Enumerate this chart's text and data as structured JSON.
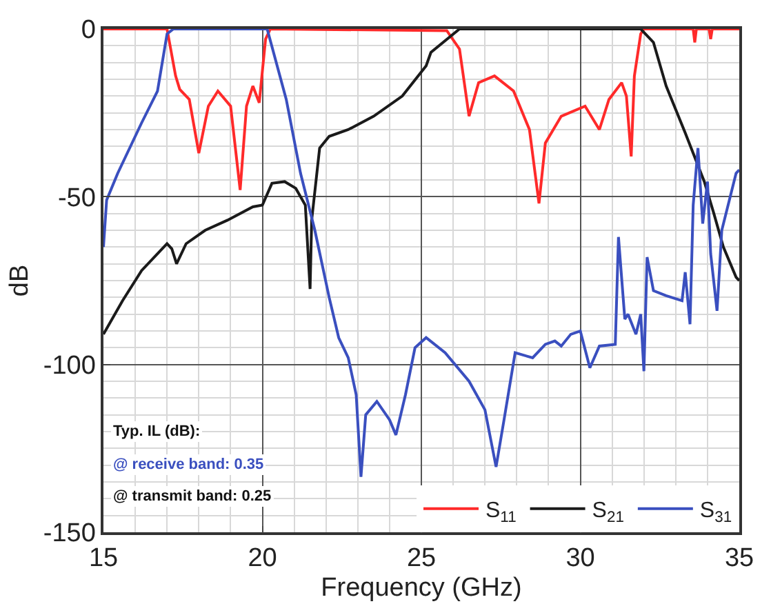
{
  "chart_data": {
    "type": "line",
    "xlabel": "Frequency (GHz)",
    "ylabel": "dB",
    "xlim": [
      15,
      35
    ],
    "xticks": [
      15,
      20,
      25,
      30,
      35
    ],
    "ylim": [
      -150,
      0
    ],
    "yticks": [
      -150,
      -100,
      -50,
      0
    ],
    "grid": true,
    "legend": "bottom right",
    "marker": "none",
    "line_style": "solid",
    "annotations": [
      "Typ. IL (dB):",
      "@ receive band: 0.35",
      "@ transmit band: 0.25"
    ],
    "series": [
      {
        "name": "S$_{11}$",
        "color": "#ff2a2a",
        "x": [
          15,
          17.0,
          17.27,
          17.4,
          17.7,
          18.0,
          18.3,
          18.6,
          19.0,
          19.3,
          19.5,
          19.7,
          19.9,
          20.1,
          20.25,
          25.8,
          26.2,
          26.5,
          26.8,
          27.3,
          27.9,
          28.4,
          28.7,
          28.9,
          29.4,
          30.15,
          30.6,
          30.9,
          31.3,
          31.45,
          31.6,
          31.7,
          31.9,
          32.0,
          33.55,
          33.6,
          33.65,
          34.05,
          34.1,
          34.15,
          35
        ],
        "values": [
          0,
          0,
          -14,
          -18,
          -21,
          -37,
          -23,
          -18.5,
          -23,
          -48,
          -23,
          -17,
          -22,
          -3,
          0,
          -0.5,
          -6,
          -26,
          -16,
          -14,
          -18.5,
          -30,
          -52,
          -34,
          -26,
          -23,
          -30,
          -21,
          -16,
          -20,
          -38,
          -14,
          -1.5,
          0,
          0,
          -4,
          0,
          0,
          -3,
          0,
          0
        ]
      },
      {
        "name": "S$_{21}$",
        "color": "#1a1a1a",
        "x": [
          15,
          15.6,
          16.2,
          17.0,
          17.15,
          17.3,
          17.6,
          18.2,
          18.9,
          19.7,
          20.0,
          20.3,
          20.7,
          21.05,
          21.35,
          21.5,
          21.55,
          21.8,
          22.1,
          22.7,
          23.5,
          24.4,
          25.15,
          25.3,
          26.2,
          31.9,
          32.3,
          32.7,
          33.3,
          33.9,
          34.2,
          34.5,
          34.9,
          35
        ],
        "values": [
          -91,
          -81,
          -72,
          -64,
          -65.5,
          -70,
          -64,
          -60,
          -57,
          -53,
          -52.5,
          -46,
          -45.5,
          -47.5,
          -52.5,
          -77.5,
          -57,
          -35.5,
          -32,
          -30,
          -26,
          -20,
          -11,
          -7,
          0,
          0,
          -4,
          -17,
          -31,
          -45.5,
          -55,
          -65,
          -74,
          -75
        ]
      },
      {
        "name": "S$_{31}$",
        "color": "#3a4fbf",
        "x": [
          15,
          15.1,
          15.45,
          16.2,
          16.7,
          17.0,
          17.2,
          20.15,
          20.75,
          21.2,
          21.65,
          22.1,
          22.4,
          22.7,
          22.95,
          23.1,
          23.25,
          23.6,
          24.0,
          24.2,
          24.5,
          24.8,
          25.15,
          25.75,
          26.5,
          27.0,
          27.35,
          27.6,
          27.95,
          28.5,
          28.9,
          29.2,
          29.4,
          29.7,
          30.0,
          30.3,
          30.6,
          31.1,
          31.2,
          31.4,
          31.5,
          31.75,
          31.9,
          32.0,
          32.1,
          32.3,
          32.7,
          33.2,
          33.3,
          33.45,
          33.55,
          33.7,
          33.85,
          34.0,
          34.1,
          34.3,
          34.45,
          34.9,
          35
        ],
        "values": [
          -65,
          -51,
          -43,
          -28,
          -18.5,
          -1.5,
          0,
          0,
          -21,
          -43,
          -60,
          -80,
          -92,
          -98,
          -109,
          -133.5,
          -115,
          -111,
          -116.5,
          -121,
          -109,
          -95,
          -92,
          -96.5,
          -105,
          -113.5,
          -130.5,
          -116.5,
          -96.5,
          -98,
          -94,
          -93,
          -94.5,
          -91,
          -90,
          -101,
          -94.5,
          -94,
          -62,
          -86.5,
          -85,
          -91,
          -85,
          -102,
          -68,
          -78,
          -79.5,
          -81,
          -72.5,
          -88,
          -52.5,
          -35.5,
          -58,
          -45.5,
          -67,
          -84,
          -60,
          -43,
          -42
        ]
      }
    ]
  }
}
